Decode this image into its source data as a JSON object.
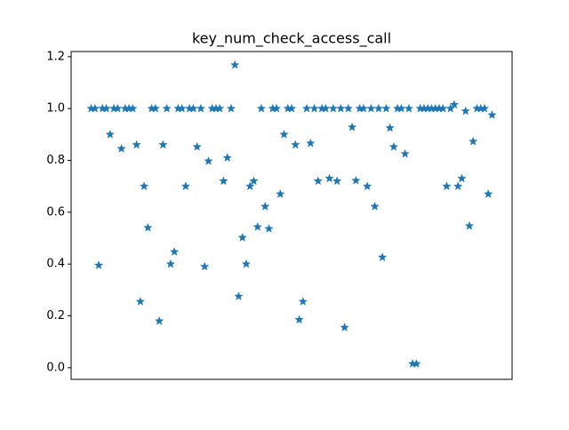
{
  "chart_data": {
    "type": "scatter",
    "title": "key_num_check_access_call",
    "marker": "star",
    "color": "#1f77b4",
    "values": [
      1,
      1,
      0.395,
      1,
      1,
      0.9,
      1,
      1,
      0.845,
      1,
      1,
      1,
      0.86,
      0.255,
      0.7,
      0.54,
      1,
      1,
      0.18,
      0.86,
      1,
      0.4,
      0.447,
      1,
      1,
      0.7,
      1,
      1,
      0.852,
      1,
      0.39,
      0.797,
      1,
      1,
      1,
      0.72,
      0.81,
      1,
      1.168,
      0.275,
      0.502,
      0.4,
      0.7,
      0.72,
      0.543,
      1,
      0.622,
      0.536,
      1,
      1,
      0.67,
      0.9,
      1,
      1,
      0.86,
      0.185,
      0.255,
      1,
      0.866,
      1,
      0.72,
      1,
      1,
      0.73,
      1,
      0.72,
      1,
      0.155,
      1,
      0.928,
      0.722,
      1,
      1,
      0.7,
      1,
      0.622,
      1,
      0.426,
      1,
      0.925,
      0.852,
      1,
      1,
      0.825,
      1,
      0.015,
      0.015,
      1,
      1,
      1,
      1,
      1,
      1,
      1,
      0.7,
      1,
      1.015,
      0.7,
      0.73,
      0.99,
      0.547,
      0.873,
      1,
      1,
      1,
      0.67,
      0.975
    ],
    "ylim": [
      -0.045,
      1.22
    ],
    "yticks": [
      {
        "value": 0,
        "label": "0.0"
      },
      {
        "value": 0.2,
        "label": "0.2"
      },
      {
        "value": 0.4,
        "label": "0.4"
      },
      {
        "value": 0.6,
        "label": "0.6"
      },
      {
        "value": 0.8,
        "label": "0.8"
      },
      {
        "value": 1,
        "label": "1.0"
      },
      {
        "value": 1.2,
        "label": "1.2"
      }
    ]
  }
}
